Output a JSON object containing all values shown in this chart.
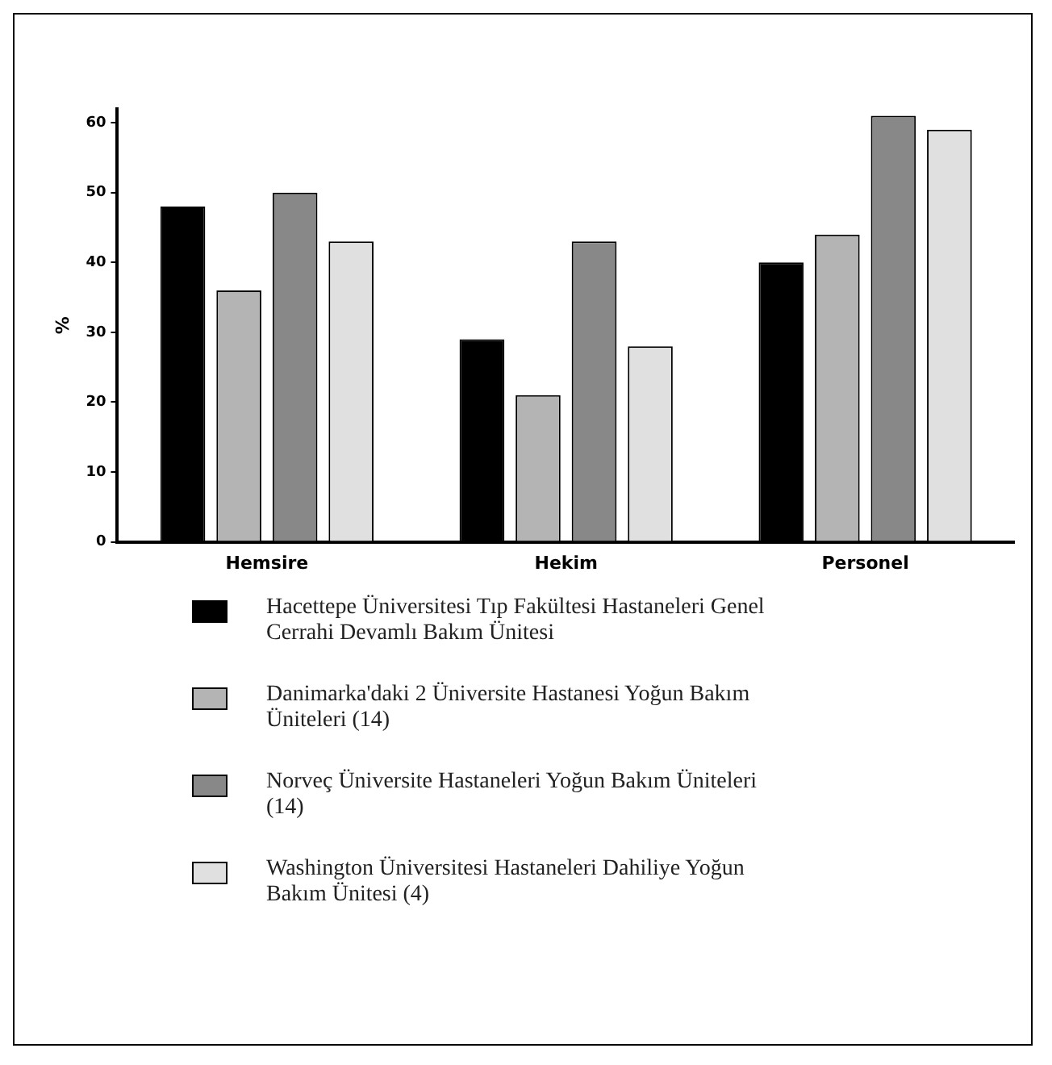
{
  "chart_data": {
    "type": "bar",
    "ylabel": "%",
    "categories": [
      "Hemsire",
      "Hekim",
      "Personel"
    ],
    "series": [
      {
        "name": "Hacettepe Üniversitesi Tıp Fakültesi Hastaneleri Genel Cerrahi Devamlı Bakım Ünitesi",
        "color": "#000000",
        "values": [
          48,
          29,
          40
        ]
      },
      {
        "name": "Danimarka'daki 2 Üniversite Hastanesi Yoğun Bakım Üniteleri (14)",
        "color": "#b4b4b4",
        "values": [
          36,
          21,
          44
        ]
      },
      {
        "name": "Norveç Üniversite Hastaneleri Yoğun Bakım Üniteleri (14)",
        "color": "#888888",
        "values": [
          50,
          43,
          61
        ]
      },
      {
        "name": "Washington Üniversitesi Hastaneleri Dahiliye Yoğun Bakım Ünitesi (4)",
        "color": "#e0e0e0",
        "values": [
          43,
          28,
          59
        ]
      }
    ],
    "ylim": [
      0,
      62
    ],
    "yticks": [
      0,
      10,
      20,
      30,
      40,
      50,
      60
    ],
    "grid": false,
    "legend": "bottom"
  }
}
